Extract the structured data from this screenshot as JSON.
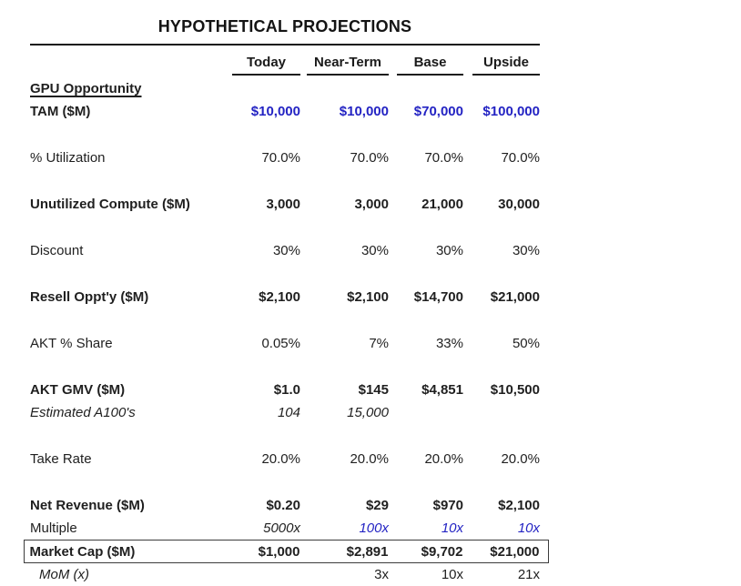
{
  "title": "HYPOTHETICAL PROJECTIONS",
  "columns": [
    "Today",
    "Near-Term",
    "Base",
    "Upside"
  ],
  "colors": {
    "accent_blue": "#2323c3",
    "text": "#1f1f1f",
    "background": "#ffffff"
  },
  "rows": [
    {
      "label": "GPU Opportunity",
      "values": [
        "",
        "",
        "",
        ""
      ],
      "label_style": "bold-underline",
      "value_style": "regular",
      "gap_before": false
    },
    {
      "label": "TAM ($M)",
      "values": [
        "$10,000",
        "$10,000",
        "$70,000",
        "$100,000"
      ],
      "label_style": "bold",
      "value_style": "bold",
      "value_colors": [
        "blue",
        "blue",
        "blue",
        "blue"
      ],
      "gap_before": false
    },
    {
      "label": "% Utilization",
      "values": [
        "70.0%",
        "70.0%",
        "70.0%",
        "70.0%"
      ],
      "label_style": "regular",
      "value_style": "regular",
      "gap_before": true
    },
    {
      "label": "Unutilized Compute ($M)",
      "values": [
        "3,000",
        "3,000",
        "21,000",
        "30,000"
      ],
      "label_style": "bold",
      "value_style": "bold",
      "gap_before": true
    },
    {
      "label": "Discount",
      "values": [
        "30%",
        "30%",
        "30%",
        "30%"
      ],
      "label_style": "regular",
      "value_style": "regular",
      "gap_before": true
    },
    {
      "label": "Resell Oppt'y ($M)",
      "values": [
        "$2,100",
        "$2,100",
        "$14,700",
        "$21,000"
      ],
      "label_style": "bold",
      "value_style": "bold",
      "gap_before": true
    },
    {
      "label": "AKT % Share",
      "values": [
        "0.05%",
        "7%",
        "33%",
        "50%"
      ],
      "label_style": "regular",
      "value_style": "regular",
      "gap_before": true
    },
    {
      "label": "AKT GMV ($M)",
      "values": [
        "$1.0",
        "$145",
        "$4,851",
        "$10,500"
      ],
      "label_style": "bold",
      "value_style": "bold",
      "gap_before": true
    },
    {
      "label": "Estimated A100's",
      "values": [
        "104",
        "15,000",
        "",
        ""
      ],
      "label_style": "italic",
      "value_style": "italic",
      "gap_before": false
    },
    {
      "label": "Take Rate",
      "values": [
        "20.0%",
        "20.0%",
        "20.0%",
        "20.0%"
      ],
      "label_style": "regular",
      "value_style": "regular",
      "gap_before": true
    },
    {
      "label": "Net Revenue ($M)",
      "values": [
        "$0.20",
        "$29",
        "$970",
        "$2,100"
      ],
      "label_style": "bold",
      "value_style": "bold",
      "gap_before": true
    },
    {
      "label": "Multiple",
      "values": [
        "5000x",
        "100x",
        "10x",
        "10x"
      ],
      "label_style": "regular",
      "value_style": "italic",
      "value_colors": [
        "default",
        "blue",
        "blue",
        "blue"
      ],
      "gap_before": false
    },
    {
      "label": "Market Cap ($M)",
      "values": [
        "$1,000",
        "$2,891",
        "$9,702",
        "$21,000"
      ],
      "label_style": "bold",
      "value_style": "bold",
      "boxed": true,
      "gap_before": false
    },
    {
      "label": "MoM (x)",
      "values": [
        "",
        "3x",
        "10x",
        "21x"
      ],
      "label_style": "italic-indent",
      "value_style": "regular",
      "gap_before": false
    }
  ]
}
